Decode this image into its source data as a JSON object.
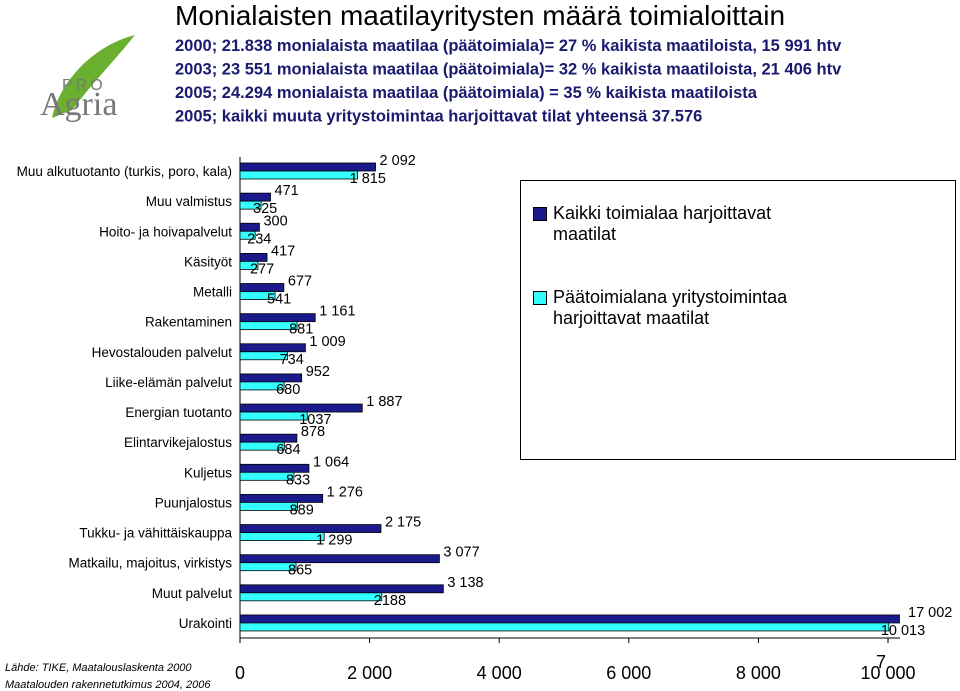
{
  "logo": {
    "top": "PRO",
    "bottom": "Agria"
  },
  "chart_data": {
    "type": "hbar",
    "title": "Monialaisten maatilayritysten määrä toimialoittain",
    "subtitle": [
      "2000; 21.838 monialaista maatilaa (päätoimiala)= 27 % kaikista maatiloista, 15 991 htv",
      "2003; 23 551 monialaista maatilaa (päätoimiala)= 32 % kaikista maatiloista, 21 406 htv",
      "2005; 24.294 monialaista maatilaa (päätoimiala) = 35 % kaikista maatiloista",
      "2005; kaikki muuta yritystoimintaa harjoittavat tilat yhteensä 37.576"
    ],
    "categories": [
      "Muu alkutuotanto (turkis, poro, kala)",
      "Muu valmistus",
      "Hoito- ja hoivapalvelut",
      "Käsityöt",
      "Metalli",
      "Rakentaminen",
      "Hevostalouden palvelut",
      "Liike-elämän palvelut",
      "Energian tuotanto",
      "Elintarvikejalostus",
      "Kuljetus",
      "Puunjalostus",
      "Tukku- ja vähittäiskauppa",
      "Matkailu, majoitus, virkistys",
      "Muut palvelut",
      "Urakointi"
    ],
    "series": [
      {
        "name": "Kaikki toimialaa harjoittavat maatilat",
        "color": "#1a1a8c",
        "values": [
          2092,
          471,
          300,
          417,
          677,
          1161,
          1009,
          952,
          1887,
          878,
          1064,
          1276,
          2175,
          3077,
          3138,
          17002
        ],
        "value_labels": [
          "2 092",
          "471",
          "300",
          "417",
          "677",
          "1 161",
          "1 009",
          "952",
          "1 887",
          "878",
          "1 064",
          "1 276",
          "2 175",
          "3 077",
          "3 138",
          "17 002"
        ]
      },
      {
        "name": "Päätoimialana yritystoimintaa harjoittavat maatilat",
        "color": "#33ffff",
        "values": [
          1815,
          325,
          234,
          277,
          541,
          881,
          734,
          680,
          1037,
          684,
          833,
          889,
          1299,
          865,
          2188,
          10013
        ],
        "value_labels": [
          "1 815",
          "325",
          "234",
          "277",
          "541",
          "881",
          "734",
          "680",
          "1037",
          "684",
          "833",
          "889",
          "1 299",
          "865",
          "2188",
          "10 013"
        ]
      }
    ],
    "xlim": [
      0,
      10000
    ],
    "xticks": [
      0,
      {
        "value": 2000,
        "label": "2 000"
      },
      {
        "value": 4000,
        "label": "4 000"
      },
      {
        "value": 6000,
        "label": "6 000"
      },
      {
        "value": 8000,
        "label": "8 000"
      },
      {
        "value": 10000,
        "label": "10 000"
      }
    ],
    "source": [
      "Lähde: TIKE, Maatalouslaskenta 2000",
      "Maatalouden rakennetutkimus 2004, 2006"
    ],
    "page_number": "7"
  }
}
